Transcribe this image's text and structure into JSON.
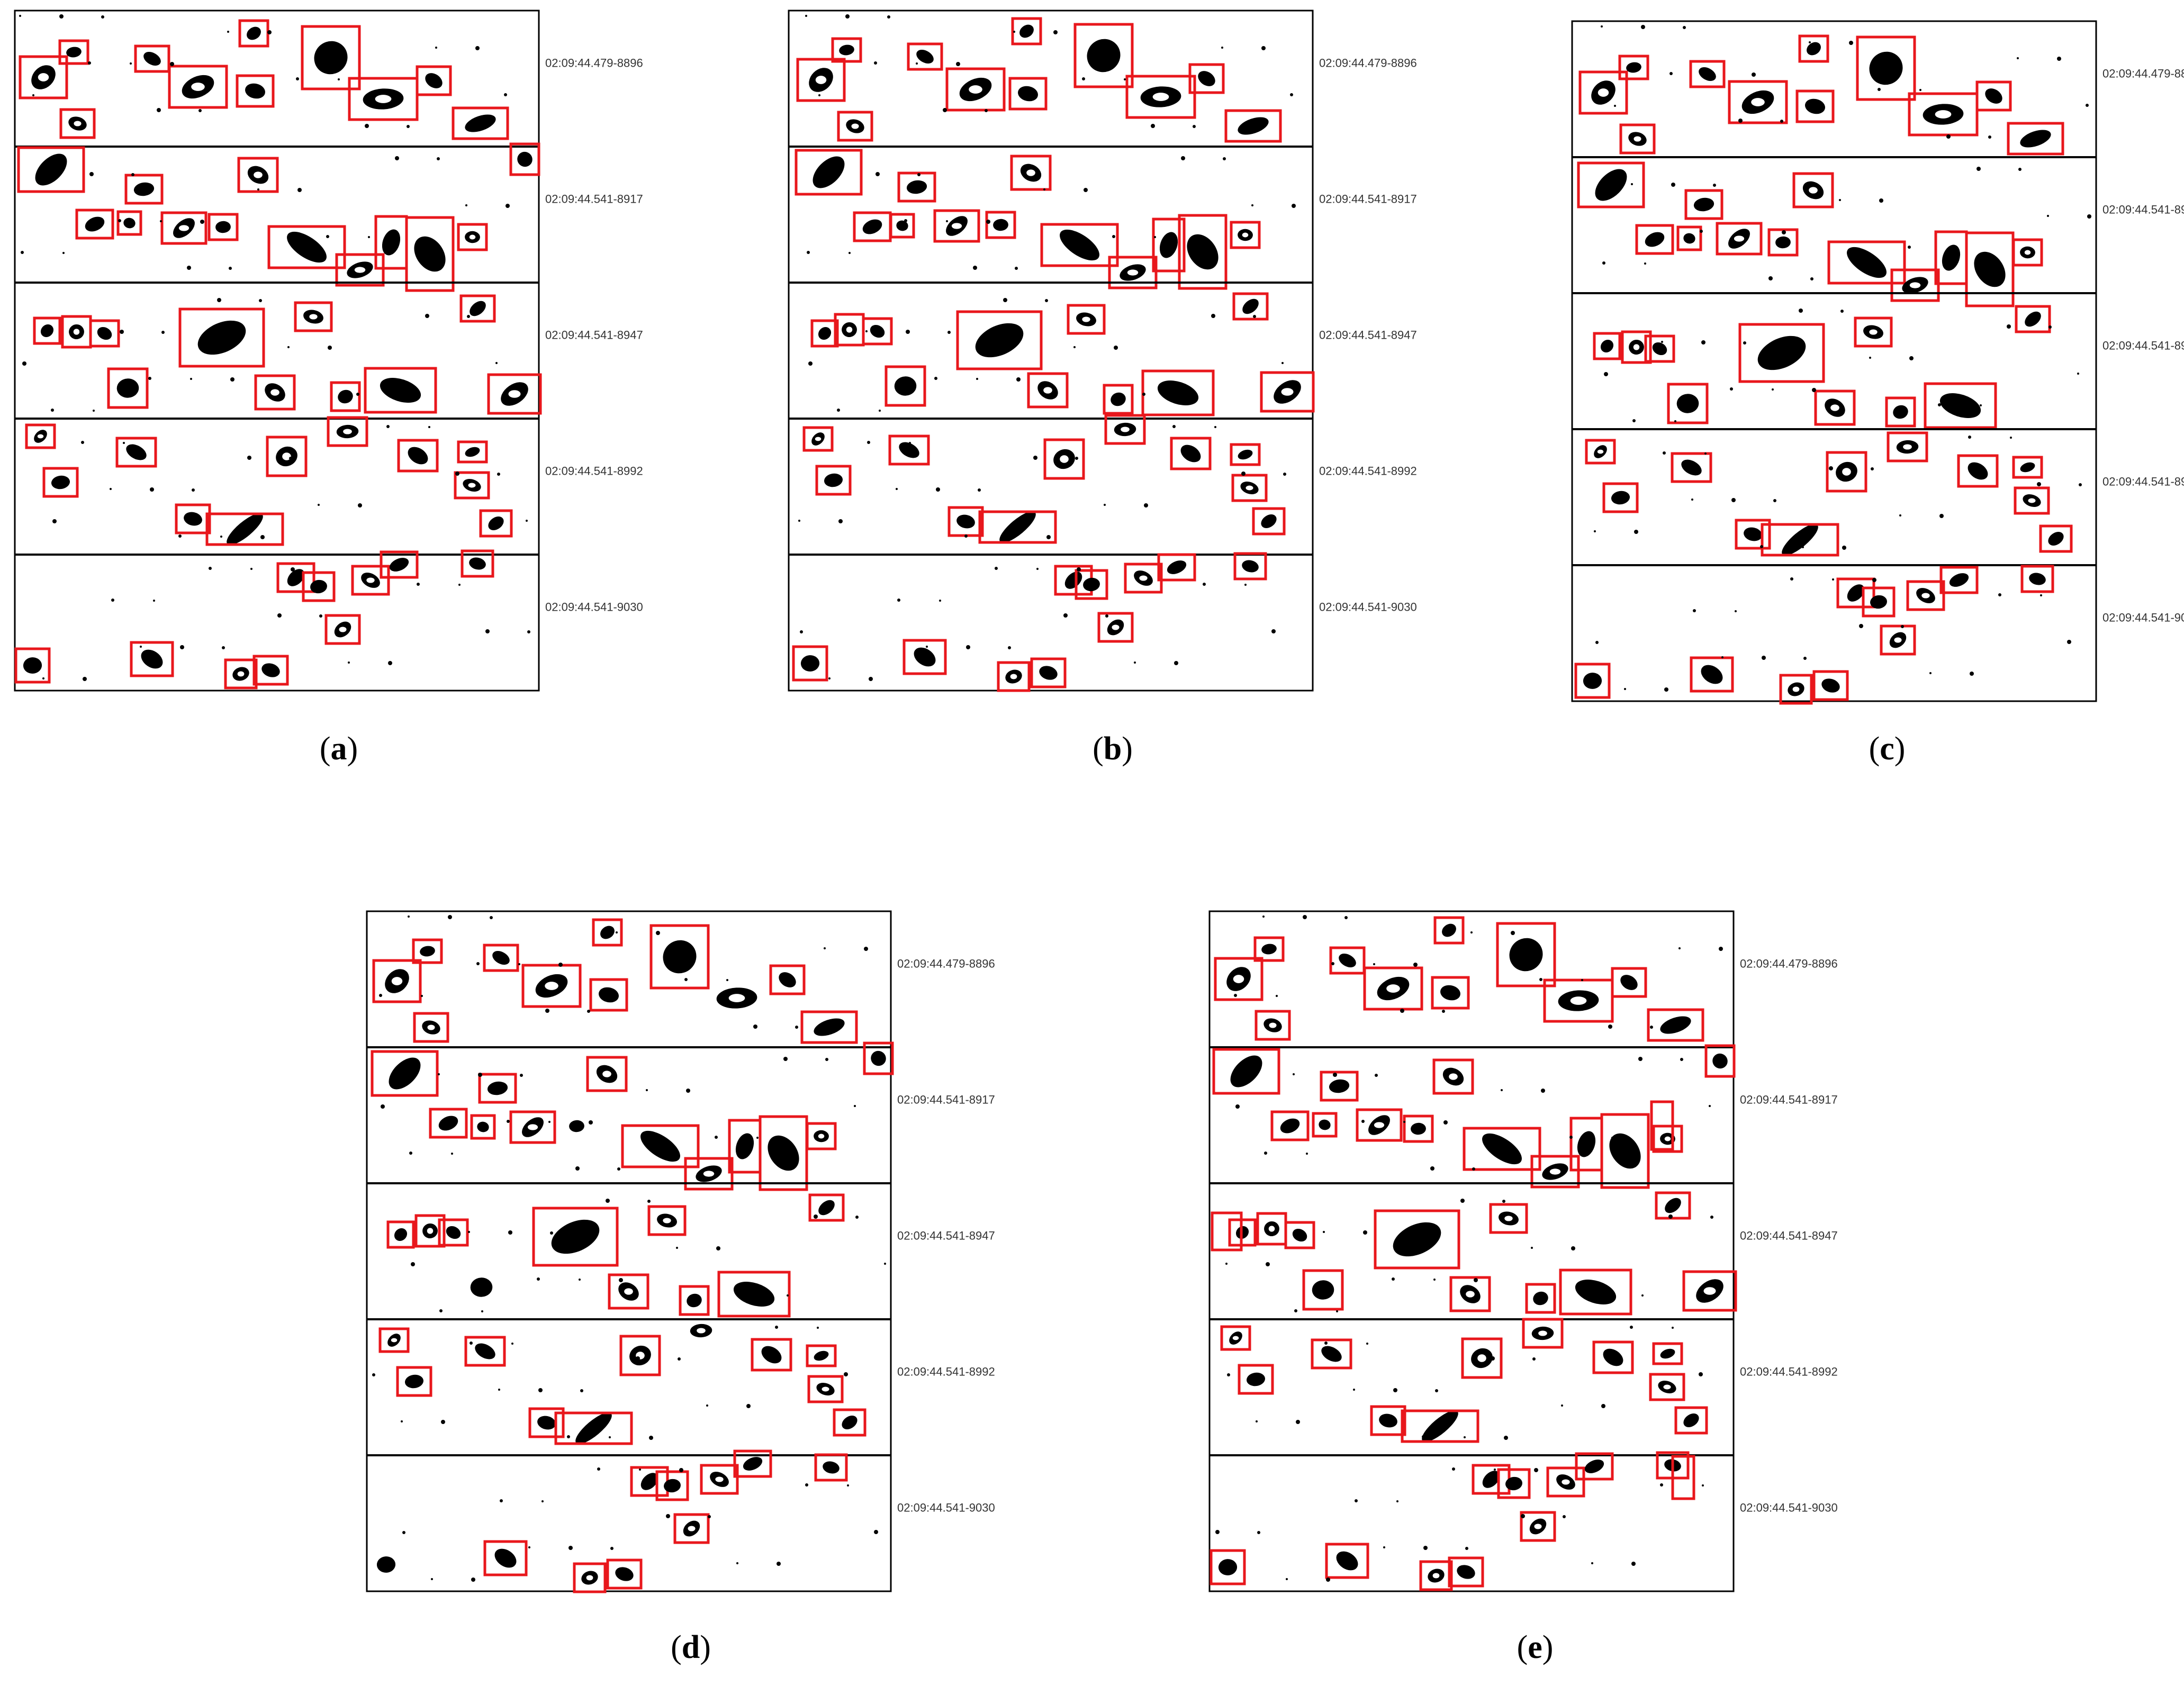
{
  "figure": {
    "panels": [
      {
        "id": "a",
        "caption": "a"
      },
      {
        "id": "b",
        "caption": "b"
      },
      {
        "id": "c",
        "caption": "c"
      },
      {
        "id": "d",
        "caption": "d"
      },
      {
        "id": "e",
        "caption": "e"
      }
    ],
    "strip_timestamps": [
      "02:09:44.479-8896",
      "02:09:44.541-8917",
      "02:09:44.541-8947",
      "02:09:44.541-8992",
      "02:09:44.541-9030"
    ],
    "colors": {
      "detection_box": "#e8171c",
      "particle": "#000000",
      "frame": "#000000"
    }
  }
}
